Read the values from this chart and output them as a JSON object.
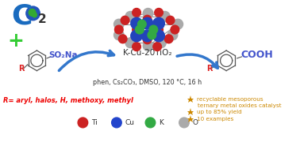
{
  "bg_color": "#ffffff",
  "co2_C_color": "#1a6bbf",
  "plus_color": "#33cc33",
  "sulfinates_text": "SO₂Na",
  "sulfinates_color": "#4455cc",
  "R_color": "#dd2222",
  "COOH_color": "#4455cc",
  "catalyst_label": "K-Cu-20TiO₂",
  "conditions": "phen, Cs₂CO₃, DMSO, 120 °C, 16 h",
  "R_text": "R= aryl, halos, H, methoxy, methyl",
  "R_text_color": "#ee0000",
  "bullet1": "recyclable mesoporous",
  "bullet2": "ternary metal oxides catalyst",
  "bullet3": "up to 85% yield",
  "bullet4": "10 examples",
  "bullet_color": "#cc8800",
  "legend_Ti": "Ti",
  "legend_Cu": "Cu",
  "legend_K": "K",
  "legend_O": "O",
  "Ti_color": "#cc2222",
  "Cu_color": "#2244cc",
  "K_color": "#33aa44",
  "O_color": "#aaaaaa",
  "arrow_color": "#3377cc",
  "crystal_gray": "#aaaaaa",
  "crystal_red": "#cc2222",
  "crystal_blue": "#2244bb",
  "crystal_green": "#33aa44"
}
